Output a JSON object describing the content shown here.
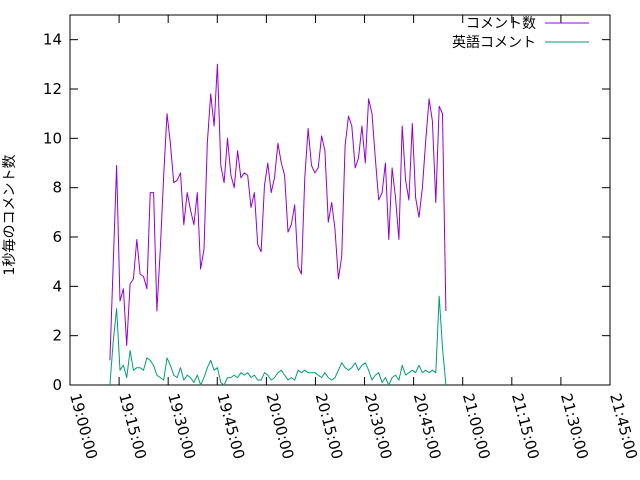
{
  "chart_data": {
    "type": "line",
    "title": "",
    "xlabel": "",
    "ylabel": "1秒毎のコメント数",
    "x_range": [
      "19:00:00",
      "21:45:00"
    ],
    "x_ticks": [
      "19:00:00",
      "19:15:00",
      "19:30:00",
      "19:45:00",
      "20:00:00",
      "20:15:00",
      "20:30:00",
      "20:45:00",
      "21:00:00",
      "21:15:00",
      "21:30:00",
      "21:45:00"
    ],
    "ylim": [
      0,
      15
    ],
    "y_ticks": [
      "0",
      "2",
      "4",
      "6",
      "8",
      "10",
      "12",
      "14"
    ],
    "grid": false,
    "legend_position": "top-right",
    "series": [
      {
        "name": "コメント数",
        "color": "#9400d3",
        "points": [
          [
            "19:12:12",
            1.0
          ],
          [
            "19:13:14",
            5.0
          ],
          [
            "19:14:15",
            8.9
          ],
          [
            "19:15:17",
            3.4
          ],
          [
            "19:16:19",
            3.9
          ],
          [
            "19:17:20",
            1.6
          ],
          [
            "19:18:22",
            4.1
          ],
          [
            "19:19:23",
            4.3
          ],
          [
            "19:20:25",
            5.9
          ],
          [
            "19:21:26",
            4.5
          ],
          [
            "19:22:28",
            4.4
          ],
          [
            "19:23:30",
            3.9
          ],
          [
            "19:24:31",
            7.8
          ],
          [
            "19:25:33",
            7.8
          ],
          [
            "19:26:34",
            3.0
          ],
          [
            "19:27:36",
            5.5
          ],
          [
            "19:28:38",
            8.5
          ],
          [
            "19:29:39",
            11.0
          ],
          [
            "19:30:41",
            9.8
          ],
          [
            "19:31:42",
            8.2
          ],
          [
            "19:32:44",
            8.3
          ],
          [
            "19:33:45",
            8.6
          ],
          [
            "19:34:47",
            6.5
          ],
          [
            "19:35:49",
            7.8
          ],
          [
            "19:36:50",
            7.1
          ],
          [
            "19:37:52",
            6.5
          ],
          [
            "19:38:53",
            7.8
          ],
          [
            "19:39:55",
            4.7
          ],
          [
            "19:40:57",
            5.5
          ],
          [
            "19:41:58",
            9.8
          ],
          [
            "19:43:00",
            11.8
          ],
          [
            "19:44:01",
            10.5
          ],
          [
            "19:45:03",
            13.0
          ],
          [
            "19:46:05",
            8.9
          ],
          [
            "19:47:06",
            8.2
          ],
          [
            "19:48:08",
            10.0
          ],
          [
            "19:49:09",
            8.5
          ],
          [
            "19:50:11",
            8.0
          ],
          [
            "19:51:12",
            9.5
          ],
          [
            "19:52:14",
            8.4
          ],
          [
            "19:53:16",
            8.6
          ],
          [
            "19:54:17",
            8.5
          ],
          [
            "19:55:19",
            7.2
          ],
          [
            "19:56:20",
            7.8
          ],
          [
            "19:57:22",
            5.7
          ],
          [
            "19:58:24",
            5.4
          ],
          [
            "19:59:25",
            8.1
          ],
          [
            "20:00:27",
            9.0
          ],
          [
            "20:01:28",
            7.8
          ],
          [
            "20:02:30",
            8.4
          ],
          [
            "20:03:31",
            9.8
          ],
          [
            "20:04:33",
            9.0
          ],
          [
            "20:05:35",
            8.5
          ],
          [
            "20:06:36",
            6.2
          ],
          [
            "20:07:38",
            6.5
          ],
          [
            "20:08:39",
            7.3
          ],
          [
            "20:09:41",
            4.8
          ],
          [
            "20:10:43",
            4.5
          ],
          [
            "20:11:44",
            8.4
          ],
          [
            "20:12:46",
            10.4
          ],
          [
            "20:13:47",
            8.9
          ],
          [
            "20:14:49",
            8.6
          ],
          [
            "20:15:50",
            8.8
          ],
          [
            "20:16:52",
            10.1
          ],
          [
            "20:17:54",
            9.5
          ],
          [
            "20:18:55",
            6.6
          ],
          [
            "20:19:57",
            7.4
          ],
          [
            "20:20:58",
            6.3
          ],
          [
            "20:22:00",
            4.3
          ],
          [
            "20:23:02",
            5.2
          ],
          [
            "20:24:03",
            9.7
          ],
          [
            "20:25:05",
            10.9
          ],
          [
            "20:26:06",
            10.5
          ],
          [
            "20:27:08",
            8.8
          ],
          [
            "20:28:10",
            9.2
          ],
          [
            "20:29:11",
            10.5
          ],
          [
            "20:30:13",
            9.0
          ],
          [
            "20:31:14",
            11.6
          ],
          [
            "20:32:16",
            11.0
          ],
          [
            "20:33:17",
            9.2
          ],
          [
            "20:34:19",
            7.5
          ],
          [
            "20:35:21",
            7.8
          ],
          [
            "20:36:22",
            9.0
          ],
          [
            "20:37:24",
            5.9
          ],
          [
            "20:38:25",
            8.8
          ],
          [
            "20:39:27",
            7.6
          ],
          [
            "20:40:29",
            5.9
          ],
          [
            "20:41:30",
            10.5
          ],
          [
            "20:42:32",
            8.3
          ],
          [
            "20:43:33",
            7.5
          ],
          [
            "20:44:35",
            10.6
          ],
          [
            "20:45:36",
            7.6
          ],
          [
            "20:46:38",
            6.8
          ],
          [
            "20:47:40",
            8.0
          ],
          [
            "20:48:41",
            9.9
          ],
          [
            "20:49:43",
            11.6
          ],
          [
            "20:50:44",
            10.7
          ],
          [
            "20:51:46",
            7.4
          ],
          [
            "20:52:48",
            11.3
          ],
          [
            "20:53:49",
            11.0
          ],
          [
            "20:54:51",
            3.0
          ]
        ]
      },
      {
        "name": "英語コメント",
        "color": "#009e73",
        "points": [
          [
            "19:12:12",
            0.0
          ],
          [
            "19:13:14",
            1.8
          ],
          [
            "19:14:15",
            3.1
          ],
          [
            "19:15:17",
            0.6
          ],
          [
            "19:16:19",
            0.8
          ],
          [
            "19:17:20",
            0.3
          ],
          [
            "19:18:22",
            1.4
          ],
          [
            "19:19:23",
            0.6
          ],
          [
            "19:20:25",
            0.7
          ],
          [
            "19:21:26",
            0.7
          ],
          [
            "19:22:28",
            0.6
          ],
          [
            "19:23:30",
            1.1
          ],
          [
            "19:24:31",
            1.0
          ],
          [
            "19:25:33",
            0.8
          ],
          [
            "19:26:34",
            0.4
          ],
          [
            "19:27:36",
            0.3
          ],
          [
            "19:28:38",
            0.2
          ],
          [
            "19:29:39",
            1.1
          ],
          [
            "19:30:41",
            0.8
          ],
          [
            "19:31:42",
            0.4
          ],
          [
            "19:32:44",
            0.3
          ],
          [
            "19:33:45",
            0.7
          ],
          [
            "19:34:47",
            0.2
          ],
          [
            "19:35:49",
            0.4
          ],
          [
            "19:36:50",
            0.3
          ],
          [
            "19:37:52",
            0.1
          ],
          [
            "19:38:53",
            0.4
          ],
          [
            "19:39:55",
            0.0
          ],
          [
            "19:40:57",
            0.3
          ],
          [
            "19:41:58",
            0.7
          ],
          [
            "19:43:00",
            1.0
          ],
          [
            "19:44:01",
            0.6
          ],
          [
            "19:45:03",
            0.7
          ],
          [
            "19:46:05",
            0.1
          ],
          [
            "19:47:06",
            0.0
          ],
          [
            "19:48:08",
            0.3
          ],
          [
            "19:49:09",
            0.3
          ],
          [
            "19:50:11",
            0.4
          ],
          [
            "19:51:12",
            0.3
          ],
          [
            "19:52:14",
            0.5
          ],
          [
            "19:53:16",
            0.4
          ],
          [
            "19:54:17",
            0.5
          ],
          [
            "19:55:19",
            0.3
          ],
          [
            "19:56:20",
            0.4
          ],
          [
            "19:57:22",
            0.2
          ],
          [
            "19:58:24",
            0.2
          ],
          [
            "19:59:25",
            0.5
          ],
          [
            "20:00:27",
            0.4
          ],
          [
            "20:01:28",
            0.2
          ],
          [
            "20:02:30",
            0.3
          ],
          [
            "20:03:31",
            0.5
          ],
          [
            "20:04:33",
            0.6
          ],
          [
            "20:05:35",
            0.4
          ],
          [
            "20:06:36",
            0.2
          ],
          [
            "20:07:38",
            0.3
          ],
          [
            "20:08:39",
            0.2
          ],
          [
            "20:09:41",
            0.6
          ],
          [
            "20:10:43",
            0.5
          ],
          [
            "20:11:44",
            0.6
          ],
          [
            "20:12:46",
            0.5
          ],
          [
            "20:13:47",
            0.5
          ],
          [
            "20:14:49",
            0.5
          ],
          [
            "20:15:50",
            0.4
          ],
          [
            "20:16:52",
            0.3
          ],
          [
            "20:17:54",
            0.5
          ],
          [
            "20:18:55",
            0.3
          ],
          [
            "20:19:57",
            0.2
          ],
          [
            "20:20:58",
            0.3
          ],
          [
            "20:22:00",
            0.6
          ],
          [
            "20:23:02",
            0.9
          ],
          [
            "20:24:03",
            0.7
          ],
          [
            "20:25:05",
            0.6
          ],
          [
            "20:26:06",
            0.7
          ],
          [
            "20:27:08",
            0.9
          ],
          [
            "20:28:10",
            0.6
          ],
          [
            "20:29:11",
            0.8
          ],
          [
            "20:30:13",
            0.9
          ],
          [
            "20:31:14",
            0.6
          ],
          [
            "20:32:16",
            0.2
          ],
          [
            "20:33:17",
            0.4
          ],
          [
            "20:34:19",
            0.5
          ],
          [
            "20:35:21",
            0.1
          ],
          [
            "20:36:22",
            0.3
          ],
          [
            "20:37:24",
            0.0
          ],
          [
            "20:38:25",
            0.3
          ],
          [
            "20:39:27",
            0.4
          ],
          [
            "20:40:29",
            0.2
          ],
          [
            "20:41:30",
            0.8
          ],
          [
            "20:42:32",
            0.4
          ],
          [
            "20:43:33",
            0.5
          ],
          [
            "20:44:35",
            0.6
          ],
          [
            "20:45:36",
            0.5
          ],
          [
            "20:46:38",
            0.8
          ],
          [
            "20:47:40",
            0.5
          ],
          [
            "20:48:41",
            0.6
          ],
          [
            "20:49:43",
            0.5
          ],
          [
            "20:50:44",
            0.6
          ],
          [
            "20:51:46",
            0.5
          ],
          [
            "20:52:48",
            3.6
          ],
          [
            "20:53:49",
            1.5
          ],
          [
            "20:54:51",
            0.0
          ]
        ]
      }
    ]
  }
}
